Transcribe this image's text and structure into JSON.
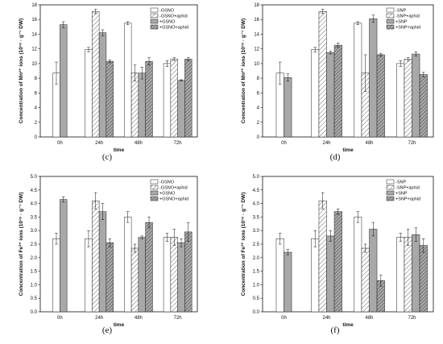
{
  "chart_data": [
    {
      "type": "bar",
      "label": "(c)",
      "ylabel": "Concentration of Mn²⁺ ions (10¹⁸ · g⁻¹ DW)",
      "xlabel": "time",
      "categories": [
        "0h",
        "24h",
        "48h",
        "72h"
      ],
      "ylim": [
        0,
        18
      ],
      "yticks": [
        0,
        2,
        4,
        6,
        8,
        10,
        12,
        14,
        16,
        18
      ],
      "legend_position": "top-right",
      "series": [
        {
          "name": "-GSNO",
          "values": [
            8.7,
            11.9,
            15.5,
            10.0
          ],
          "errors": [
            1.5,
            0.3,
            0.2,
            0.4
          ]
        },
        {
          "name": "-GSNO+aphid",
          "values": [
            null,
            17.1,
            8.7,
            10.6
          ],
          "errors": [
            null,
            0.3,
            1.1,
            0.2
          ]
        },
        {
          "name": "+GSNO",
          "values": [
            15.3,
            14.2,
            8.7,
            7.7
          ],
          "errors": [
            0.4,
            0.4,
            0.8,
            0.1
          ]
        },
        {
          "name": "+GSNO+aphid",
          "values": [
            null,
            10.3,
            10.3,
            10.6
          ],
          "errors": [
            null,
            0.2,
            0.5,
            0.2
          ]
        }
      ]
    },
    {
      "type": "bar",
      "label": "(d)",
      "ylabel": "Concentration of Mn²⁺ ions (10¹⁸ · g⁻¹ DW)",
      "xlabel": "time",
      "categories": [
        "0h",
        "24h",
        "48h",
        "72h"
      ],
      "ylim": [
        0,
        18
      ],
      "yticks": [
        0,
        2,
        4,
        6,
        8,
        10,
        12,
        14,
        16,
        18
      ],
      "legend_position": "top-right",
      "series": [
        {
          "name": "-SNP",
          "values": [
            8.7,
            11.9,
            15.5,
            10.0
          ],
          "errors": [
            1.5,
            0.3,
            0.2,
            0.4
          ]
        },
        {
          "name": "-SNP+aphid",
          "values": [
            null,
            17.1,
            8.7,
            10.6
          ],
          "errors": [
            null,
            0.3,
            2.5,
            0.2
          ]
        },
        {
          "name": "+SNP",
          "values": [
            8.1,
            11.5,
            16.1,
            11.3
          ],
          "errors": [
            0.5,
            0.2,
            0.5,
            0.3
          ]
        },
        {
          "name": "+SNP+aphid",
          "values": [
            null,
            12.5,
            11.2,
            8.5
          ],
          "errors": [
            null,
            0.3,
            0.2,
            0.3
          ]
        }
      ]
    },
    {
      "type": "bar",
      "label": "(e)",
      "ylabel": "Concentration of Fe³⁺ ions (10¹⁸ · g⁻¹ DW)",
      "xlabel": "time",
      "categories": [
        "0h",
        "24h",
        "48h",
        "72h"
      ],
      "ylim": [
        0,
        5.0
      ],
      "yticks": [
        0.0,
        0.5,
        1.0,
        1.5,
        2.0,
        2.5,
        3.0,
        3.5,
        4.0,
        4.5,
        5.0
      ],
      "legend_position": "top-right",
      "series": [
        {
          "name": "-GSNO",
          "values": [
            2.7,
            2.7,
            3.5,
            2.75
          ],
          "errors": [
            0.2,
            0.3,
            0.2,
            0.15
          ]
        },
        {
          "name": "-GSNO+aphid",
          "values": [
            null,
            4.1,
            2.35,
            2.75
          ],
          "errors": [
            null,
            0.3,
            0.15,
            0.3
          ]
        },
        {
          "name": "+GSNO",
          "values": [
            4.15,
            3.7,
            2.75,
            2.55
          ],
          "errors": [
            0.1,
            0.3,
            0.05,
            0.15
          ]
        },
        {
          "name": "+GSNO+aphid",
          "values": [
            null,
            2.55,
            3.3,
            2.95
          ],
          "errors": [
            null,
            0.15,
            0.2,
            0.35
          ]
        }
      ]
    },
    {
      "type": "bar",
      "label": "(f)",
      "ylabel": "Concentration of Fe³⁺ ions (10¹⁸ · g⁻¹ DW)",
      "xlabel": "time",
      "categories": [
        "0h",
        "24h",
        "48h",
        "72h"
      ],
      "ylim": [
        0,
        5.0
      ],
      "yticks": [
        0.0,
        0.5,
        1.0,
        1.5,
        2.0,
        2.5,
        3.0,
        3.5,
        4.0,
        4.5,
        5.0
      ],
      "legend_position": "top-right",
      "series": [
        {
          "name": "-SNP",
          "values": [
            2.7,
            2.7,
            3.5,
            2.75
          ],
          "errors": [
            0.2,
            0.3,
            0.2,
            0.15
          ]
        },
        {
          "name": "-SNP+aphid",
          "values": [
            null,
            4.1,
            2.35,
            2.75
          ],
          "errors": [
            null,
            0.3,
            0.15,
            0.3
          ]
        },
        {
          "name": "+SNP",
          "values": [
            2.2,
            2.8,
            3.05,
            2.85
          ],
          "errors": [
            0.1,
            0.2,
            0.25,
            0.25
          ]
        },
        {
          "name": "+SNP+aphid",
          "values": [
            null,
            3.7,
            1.15,
            2.45
          ],
          "errors": [
            null,
            0.1,
            0.2,
            0.25
          ]
        }
      ]
    }
  ]
}
